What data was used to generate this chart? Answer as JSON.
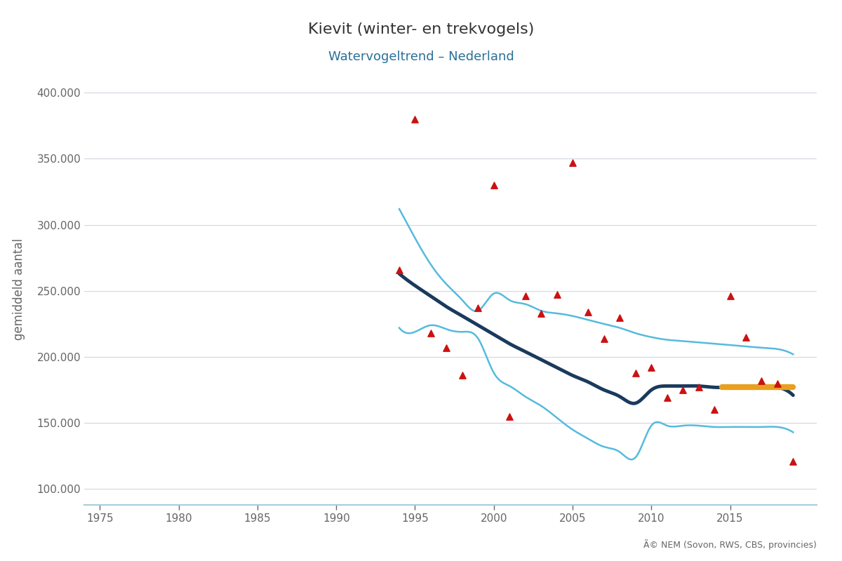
{
  "title": "Kievit (winter- en trekvogels)",
  "subtitle": "Watervogeltrend – Nederland",
  "ylabel": "gemiddeld aantal",
  "copyright_text": "Ã© NEM (Sovon, RWS, CBS, provincies)",
  "background_color": "#ffffff",
  "plot_bg_color": "#ffffff",
  "title_color": "#333333",
  "subtitle_color": "#2a7099",
  "ylabel_color": "#666666",
  "grid_color": "#d0d8e0",
  "axis_color": "#aaccdd",
  "tick_color": "#666666",
  "xlim": [
    1974,
    2020.5
  ],
  "ylim": [
    88000,
    415000
  ],
  "yticks": [
    100000,
    150000,
    200000,
    250000,
    300000,
    350000,
    400000
  ],
  "ytick_labels": [
    "100.000",
    "150.000",
    "200.000",
    "250.000",
    "300.000",
    "350.000",
    "400.000"
  ],
  "xticks": [
    1975,
    1980,
    1985,
    1990,
    1995,
    2000,
    2005,
    2010,
    2015
  ],
  "scatter_x": [
    1994,
    1995,
    1996,
    1997,
    1998,
    1999,
    2000,
    2001,
    2002,
    2003,
    2004,
    2005,
    2006,
    2007,
    2008,
    2009,
    2010,
    2011,
    2012,
    2013,
    2014,
    2015,
    2016,
    2017,
    2018,
    2019
  ],
  "scatter_y": [
    266000,
    380000,
    218000,
    207000,
    186000,
    237000,
    330000,
    155000,
    246000,
    233000,
    247000,
    347000,
    234000,
    214000,
    230000,
    188000,
    192000,
    169000,
    175000,
    177000,
    160000,
    246000,
    215000,
    182000,
    180000,
    121000
  ],
  "scatter_color": "#cc1111",
  "scatter_size": 45,
  "trend_x": [
    1994,
    1995,
    1996,
    1997,
    1998,
    1999,
    2000,
    2001,
    2002,
    2003,
    2004,
    2005,
    2006,
    2007,
    2008,
    2009,
    2010,
    2011,
    2012,
    2013,
    2014,
    2015,
    2016,
    2017,
    2018,
    2019
  ],
  "trend_y": [
    263000,
    254000,
    246000,
    238000,
    231000,
    224000,
    217000,
    210000,
    204000,
    198000,
    192000,
    186000,
    181000,
    175000,
    170000,
    165000,
    175000,
    178000,
    178000,
    178000,
    177000,
    177000,
    177000,
    177000,
    177000,
    171000
  ],
  "trend_color": "#1a3a5c",
  "trend_linewidth": 3.5,
  "ci_upper_x": [
    1994,
    1995,
    1996,
    1997,
    1998,
    1999,
    2000,
    2001,
    2002,
    2003,
    2004,
    2005,
    2006,
    2007,
    2008,
    2009,
    2010,
    2011,
    2012,
    2013,
    2014,
    2015,
    2016,
    2017,
    2018,
    2019
  ],
  "ci_upper_y": [
    312000,
    290000,
    270000,
    255000,
    243000,
    235000,
    248000,
    243000,
    240000,
    235000,
    233000,
    231000,
    228000,
    225000,
    222000,
    218000,
    215000,
    213000,
    212000,
    211000,
    210000,
    209000,
    208000,
    207000,
    206000,
    202000
  ],
  "ci_lower_x": [
    1994,
    1995,
    1996,
    1997,
    1998,
    1999,
    2000,
    2001,
    2002,
    2003,
    2004,
    2005,
    2006,
    2007,
    2008,
    2009,
    2010,
    2011,
    2012,
    2013,
    2014,
    2015,
    2016,
    2017,
    2018,
    2019
  ],
  "ci_lower_y": [
    222000,
    219000,
    224000,
    221000,
    219000,
    214000,
    188000,
    178000,
    170000,
    163000,
    154000,
    145000,
    138000,
    132000,
    128000,
    124000,
    148000,
    148000,
    148000,
    148000,
    147000,
    147000,
    147000,
    147000,
    147000,
    143000
  ],
  "ci_color": "#55bbdd",
  "ci_linewidth": 1.8,
  "orange_line_x": [
    2014.5,
    2015,
    2016,
    2017,
    2018,
    2019
  ],
  "orange_line_y": [
    177000,
    177000,
    177000,
    177000,
    177000,
    177000
  ],
  "orange_color": "#e8a020",
  "orange_linewidth": 6
}
